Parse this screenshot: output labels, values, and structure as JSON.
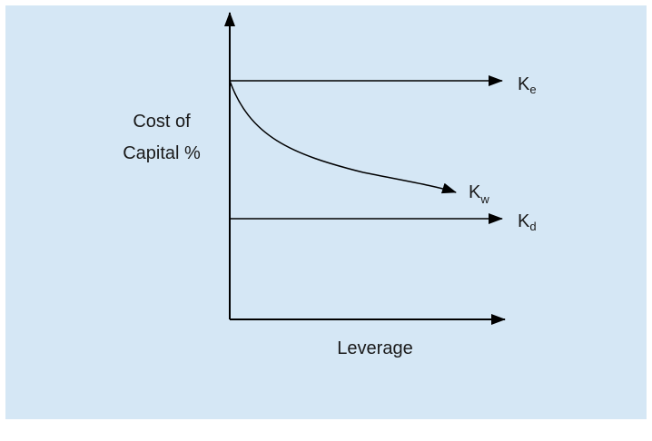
{
  "y_axis_label": [
    "Cost of",
    "Capital %"
  ],
  "x_axis_label": "Leverage",
  "lines": [
    {
      "label": "K",
      "subscript": "e"
    },
    {
      "label": "K",
      "subscript": "w"
    },
    {
      "label": "K",
      "subscript": "d"
    }
  ]
}
